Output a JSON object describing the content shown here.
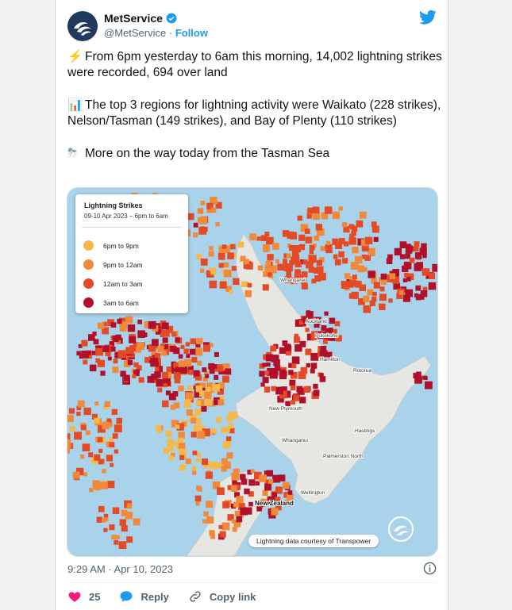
{
  "account": {
    "name": "MetService",
    "handle": "@MetService",
    "separator": "·",
    "follow_label": "Follow"
  },
  "tweet": {
    "paragraphs": [
      {
        "emoji": "⚡",
        "text": "From 6pm yesterday to 6am this morning, 14,002 lightning strikes were recorded, 694 over land"
      },
      {
        "emoji": "📊",
        "text": "The top 3 regions for lightning activity were Waikato (228 strikes), Nelson/Tasman (149 strikes), and Bay of Plenty (110 strikes)"
      },
      {
        "emoji": "⛈",
        "text": "More on the way today from the Tasman Sea"
      }
    ]
  },
  "map": {
    "legend": {
      "title": "Lightning Strikes",
      "subtitle": "09-10 Apr 2023 – 6pm to 6am",
      "items": [
        {
          "label": "6pm to 9pm",
          "color": "#f7b84a"
        },
        {
          "label": "9pm to 12am",
          "color": "#f08a3a"
        },
        {
          "label": "12am to 3am",
          "color": "#e34a26"
        },
        {
          "label": "3am to 6am",
          "color": "#b0102a"
        }
      ]
    },
    "places": [
      {
        "name": "Whangarei"
      },
      {
        "name": "Auckland"
      },
      {
        "name": "Pukekohe"
      },
      {
        "name": "Hamilton"
      },
      {
        "name": "Rotorua"
      },
      {
        "name": "New Plymouth"
      },
      {
        "name": "Whanganui"
      },
      {
        "name": "Hastings"
      },
      {
        "name": "Palmerston North"
      },
      {
        "name": "Wellington"
      },
      {
        "name": "New Zealand"
      }
    ],
    "credit": "Lightning data courtesy of Transpower",
    "colors": {
      "sea": "#a9d3ea",
      "land": "#e6e6e3"
    }
  },
  "footer": {
    "timestamp": "9:29 AM · Apr 10, 2023",
    "likes": "25",
    "reply_label": "Reply",
    "copy_label": "Copy link"
  },
  "icons": [
    "metservice-logo-icon",
    "verified-badge-icon",
    "twitter-bird-icon",
    "info-icon",
    "heart-icon",
    "reply-icon",
    "link-icon"
  ]
}
